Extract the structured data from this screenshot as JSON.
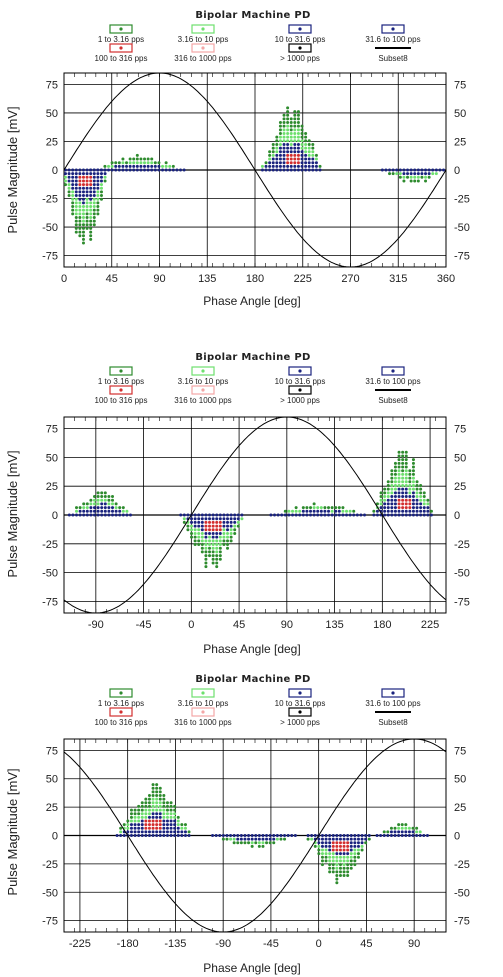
{
  "colors": {
    "background": "#ffffff",
    "grid": "#000000",
    "sine": "#000000",
    "rate_1_316": "#2e8b2e",
    "rate_316_10": "#6ee06e",
    "rate_10_316": "#1a237e",
    "rate_316_100": "#1a237e",
    "rate_100_316": "#d32f2f",
    "rate_316_1000": "#f4a6a6",
    "rate_gt_1000": "#000000"
  },
  "legend": [
    {
      "label": "1 to 3.16 pps",
      "color": "#2e8b2e",
      "icon": "point-box-icon"
    },
    {
      "label": "3.16 to 10 pps",
      "color": "#6ee06e",
      "icon": "point-box-icon"
    },
    {
      "label": "10 to 31.6 pps",
      "color": "#1a237e",
      "icon": "point-box-icon"
    },
    {
      "label": "31.6 to 100 pps",
      "color": "#1a237e",
      "icon": "point-box-icon"
    },
    {
      "label": "100 to 316 pps",
      "color": "#d32f2f",
      "icon": "point-box-icon"
    },
    {
      "label": "316 to 1000 pps",
      "color": "#f4a6a6",
      "icon": "point-box-icon"
    },
    {
      "label": "> 1000 pps",
      "color": "#000000",
      "icon": "point-box-icon"
    },
    {
      "label": "Subset8",
      "color": "#000000",
      "icon": "line-icon"
    }
  ],
  "chart_data": [
    {
      "type": "scatter",
      "title": "Bipolar Machine PD",
      "xlabel": "Phase Angle [deg]",
      "ylabel": "Pulse Magnitude [mV]",
      "xlim": [
        0,
        360
      ],
      "ylim": [
        -85,
        85
      ],
      "xticks": [
        0,
        45,
        90,
        135,
        180,
        225,
        270,
        315,
        360
      ],
      "yticks": [
        75,
        50,
        25,
        0,
        -25,
        -50,
        -75
      ],
      "grid": true,
      "sine_phase_shift": 0,
      "sine_amplitude": 85,
      "clusters": [
        {
          "center": 20,
          "halfwidth": 22,
          "sign": -1,
          "height": 65
        },
        {
          "center": 215,
          "halfwidth": 28,
          "sign": 1,
          "height": 55
        },
        {
          "center": 70,
          "halfwidth": 45,
          "sign": 1,
          "height": 12
        },
        {
          "center": 330,
          "halfwidth": 30,
          "sign": -1,
          "height": 12
        }
      ]
    },
    {
      "type": "scatter",
      "title": "Bipolar Machine PD",
      "xlabel": "Phase Angle [deg]",
      "ylabel": "Pulse Magnitude [mV]",
      "xlim": [
        -120,
        240
      ],
      "ylim": [
        -85,
        85
      ],
      "xticks": [
        -90,
        -45,
        0,
        45,
        90,
        135,
        180,
        225
      ],
      "yticks": [
        75,
        50,
        25,
        0,
        -25,
        -50,
        -75
      ],
      "grid": true,
      "sine_phase_shift": 0,
      "sine_amplitude": 85,
      "clusters": [
        {
          "center": 20,
          "halfwidth": 30,
          "sign": -1,
          "height": 45
        },
        {
          "center": 200,
          "halfwidth": 28,
          "sign": 1,
          "height": 55
        },
        {
          "center": -85,
          "halfwidth": 30,
          "sign": 1,
          "height": 20
        },
        {
          "center": 120,
          "halfwidth": 45,
          "sign": 1,
          "height": 10
        }
      ]
    },
    {
      "type": "scatter",
      "title": "Bipolar Machine PD",
      "xlabel": "Phase Angle [deg]",
      "ylabel": "Pulse Magnitude [mV]",
      "xlim": [
        -240,
        120
      ],
      "ylim": [
        -85,
        85
      ],
      "xticks": [
        -225,
        -180,
        -135,
        -90,
        -45,
        0,
        45,
        90
      ],
      "yticks": [
        75,
        50,
        25,
        0,
        -25,
        -50,
        -75
      ],
      "grid": true,
      "sine_phase_shift": 0,
      "sine_amplitude": 85,
      "clusters": [
        {
          "center": -155,
          "halfwidth": 35,
          "sign": 1,
          "height": 45
        },
        {
          "center": 20,
          "halfwidth": 30,
          "sign": -1,
          "height": 40
        },
        {
          "center": -60,
          "halfwidth": 40,
          "sign": -1,
          "height": 10
        },
        {
          "center": 80,
          "halfwidth": 25,
          "sign": 1,
          "height": 10
        }
      ]
    }
  ]
}
